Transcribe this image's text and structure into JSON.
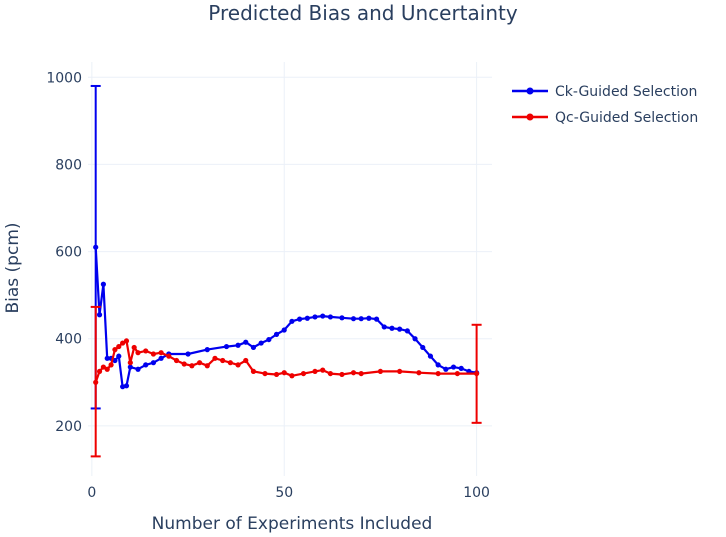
{
  "chart_data": {
    "type": "line",
    "title": "Predicted Bias and Uncertainty",
    "xlabel": "Number of Experiments Included",
    "ylabel": "Bias (pcm)",
    "xlim": [
      -1,
      104
    ],
    "ylim": [
      85,
      1035
    ],
    "x_ticks": [
      0,
      50,
      100
    ],
    "y_ticks": [
      200,
      400,
      600,
      800,
      1000
    ],
    "grid": true,
    "legend_position": "top-right",
    "series": [
      {
        "name": "Ck-Guided Selection",
        "color": "#0000ee",
        "x": [
          1,
          2,
          3,
          4,
          5,
          6,
          7,
          8,
          9,
          10,
          12,
          14,
          16,
          18,
          20,
          25,
          30,
          35,
          38,
          40,
          42,
          44,
          46,
          48,
          50,
          52,
          54,
          56,
          58,
          60,
          62,
          65,
          68,
          70,
          72,
          74,
          76,
          78,
          80,
          82,
          84,
          86,
          88,
          90,
          92,
          94,
          96,
          98,
          100
        ],
        "y": [
          610,
          455,
          525,
          355,
          355,
          350,
          360,
          290,
          292,
          335,
          330,
          340,
          345,
          355,
          365,
          365,
          375,
          382,
          385,
          392,
          380,
          390,
          398,
          410,
          420,
          440,
          445,
          447,
          450,
          452,
          450,
          448,
          446,
          446,
          447,
          445,
          427,
          424,
          422,
          418,
          400,
          380,
          360,
          340,
          330,
          335,
          332,
          325,
          322
        ],
        "error_bars": [
          {
            "x": 1,
            "y": 610,
            "low": 240,
            "high": 980
          }
        ]
      },
      {
        "name": "Qc-Guided Selection",
        "color": "#ee0000",
        "x": [
          1,
          2,
          3,
          4,
          5,
          6,
          7,
          8,
          9,
          10,
          11,
          12,
          14,
          16,
          18,
          20,
          22,
          24,
          26,
          28,
          30,
          32,
          34,
          36,
          38,
          40,
          42,
          45,
          48,
          50,
          52,
          55,
          58,
          60,
          62,
          65,
          68,
          70,
          75,
          80,
          85,
          90,
          95,
          100
        ],
        "y": [
          300,
          325,
          335,
          330,
          340,
          375,
          382,
          390,
          395,
          345,
          380,
          368,
          372,
          365,
          368,
          360,
          350,
          342,
          338,
          345,
          338,
          355,
          350,
          345,
          340,
          350,
          325,
          320,
          318,
          322,
          315,
          320,
          325,
          328,
          320,
          318,
          322,
          320,
          325,
          325,
          322,
          320,
          320,
          320
        ],
        "error_bars": [
          {
            "x": 1,
            "y": 300,
            "low": 130,
            "high": 473
          },
          {
            "x": 100,
            "y": 320,
            "low": 207,
            "high": 432
          }
        ]
      }
    ]
  }
}
